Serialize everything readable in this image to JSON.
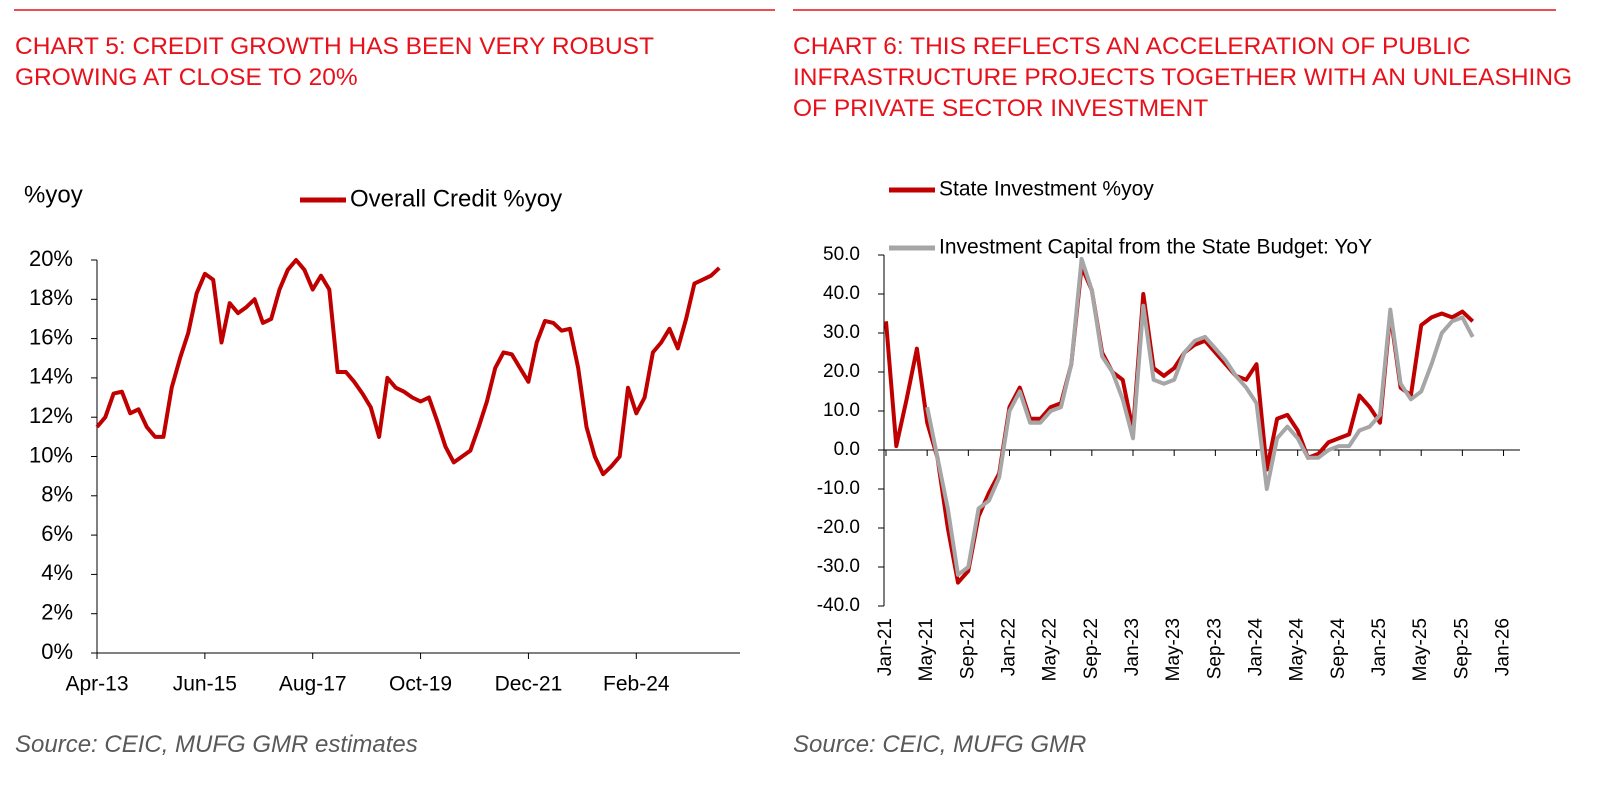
{
  "chart_data": [
    {
      "type": "line",
      "title": "CHART 5: CREDIT GROWTH HAS BEEN VERY ROBUST GROWING AT CLOSE TO 20%",
      "y_label": "%yoy",
      "source": "Source: CEIC, MUFG GMR estimates",
      "categories": [
        "Apr-13",
        null,
        null,
        null,
        null,
        null,
        null,
        null,
        null,
        null,
        null,
        null,
        null,
        "Jun-15",
        null,
        null,
        null,
        null,
        null,
        null,
        null,
        null,
        null,
        null,
        null,
        null,
        "Aug-17",
        null,
        null,
        null,
        null,
        null,
        null,
        null,
        null,
        null,
        null,
        null,
        null,
        "Oct-19",
        null,
        null,
        null,
        null,
        null,
        null,
        null,
        null,
        null,
        null,
        null,
        null,
        "Dec-21",
        null,
        null,
        null,
        null,
        null,
        null,
        null,
        null,
        null,
        null,
        null,
        null,
        "Feb-24",
        null,
        null,
        null,
        null,
        null,
        null,
        null,
        null,
        null,
        null
      ],
      "series": [
        {
          "name": "Overall Credit %yoy",
          "color": "#c00000",
          "values": [
            11.5,
            12.0,
            13.2,
            13.3,
            12.2,
            12.4,
            11.5,
            11.0,
            11.0,
            13.5,
            15.0,
            16.3,
            18.3,
            19.3,
            19.0,
            15.8,
            17.8,
            17.3,
            17.6,
            18.0,
            16.8,
            17.0,
            18.5,
            19.5,
            20.0,
            19.5,
            18.5,
            19.2,
            18.5,
            14.3,
            14.3,
            13.8,
            13.2,
            12.5,
            11.0,
            14.0,
            13.5,
            13.3,
            13.0,
            12.8,
            13.0,
            11.8,
            10.5,
            9.7,
            10.0,
            10.3,
            11.5,
            12.8,
            14.5,
            15.3,
            15.2,
            14.5,
            13.8,
            15.8,
            16.9,
            16.8,
            16.4,
            16.5,
            14.5,
            11.5,
            10.0,
            9.1,
            9.5,
            10.0,
            13.5,
            12.2,
            13.0,
            15.3,
            15.8,
            16.5,
            15.5,
            17.0,
            18.8,
            19.0,
            19.2,
            19.6
          ]
        }
      ],
      "ylim": [
        0,
        20
      ],
      "yticks": [
        {
          "value": 0,
          "label": "0%"
        },
        {
          "value": 2,
          "label": "2%"
        },
        {
          "value": 4,
          "label": "4%"
        },
        {
          "value": 6,
          "label": "6%"
        },
        {
          "value": 8,
          "label": "8%"
        },
        {
          "value": 10,
          "label": "10%"
        },
        {
          "value": 12,
          "label": "12%"
        },
        {
          "value": 14,
          "label": "14%"
        },
        {
          "value": 16,
          "label": "16%"
        },
        {
          "value": 18,
          "label": "18%"
        },
        {
          "value": 20,
          "label": "20%"
        }
      ],
      "grid": false
    },
    {
      "type": "line",
      "title": "CHART 6: THIS REFLECTS AN ACCELERATION OF PUBLIC INFRASTRUCTURE PROJECTS TOGETHER WITH AN UNLEASHING OF PRIVATE SECTOR INVESTMENT",
      "source": "Source: CEIC, MUFG GMR",
      "categories": [
        "Jan-21",
        null,
        null,
        null,
        "May-21",
        null,
        null,
        null,
        "Sep-21",
        null,
        null,
        null,
        "Jan-22",
        null,
        null,
        null,
        "May-22",
        null,
        null,
        null,
        "Sep-22",
        null,
        null,
        null,
        "Jan-23",
        null,
        null,
        null,
        "May-23",
        null,
        null,
        null,
        "Sep-23",
        null,
        null,
        null,
        "Jan-24",
        null,
        null,
        null,
        "May-24",
        null,
        null,
        null,
        "Sep-24",
        null,
        null,
        null,
        "Jan-25",
        null,
        null,
        null,
        "May-25",
        null,
        null,
        null,
        "Sep-25",
        null,
        null,
        null,
        "Jan-26"
      ],
      "series": [
        {
          "name": "State Investment %yoy",
          "color": "#c00000",
          "values": [
            33,
            1,
            13,
            26,
            7,
            -2,
            -20,
            -34,
            -31,
            -17,
            -11,
            -6,
            11,
            16,
            8,
            8,
            11,
            12,
            22,
            47,
            41,
            25,
            20,
            18,
            5,
            40,
            21,
            19,
            21,
            25,
            27,
            28,
            25,
            22,
            19,
            18,
            22,
            -5,
            8,
            9,
            5,
            -2,
            -1,
            2,
            3,
            4,
            14,
            11,
            7,
            35,
            16,
            14,
            32,
            34,
            35,
            34,
            35.5,
            33,
            null,
            null,
            null
          ]
        },
        {
          "name": "Investment Capital from the State Budget: YoY",
          "color": "#a6a6a6",
          "values": [
            null,
            null,
            null,
            null,
            11,
            -2,
            -15,
            -32,
            -30,
            -15,
            -13,
            -7,
            10,
            15,
            7,
            7,
            10,
            11,
            22,
            49,
            41,
            24,
            20,
            13,
            3,
            37,
            18,
            17,
            18,
            25,
            28,
            29,
            26,
            23,
            19,
            16,
            12,
            -10,
            3,
            6,
            3,
            -2,
            -2,
            0,
            1,
            1,
            5,
            6,
            9,
            36,
            17,
            13,
            15,
            22,
            30,
            33,
            34,
            29,
            null,
            null,
            null
          ]
        }
      ],
      "ylim": [
        -40,
        50
      ],
      "yticks": [
        {
          "value": -40,
          "label": "-40.0"
        },
        {
          "value": -30,
          "label": "-30.0"
        },
        {
          "value": -20,
          "label": "-20.0"
        },
        {
          "value": -10,
          "label": "-10.0"
        },
        {
          "value": 0,
          "label": "0.0"
        },
        {
          "value": 10,
          "label": "10.0"
        },
        {
          "value": 20,
          "label": "20.0"
        },
        {
          "value": 30,
          "label": "30.0"
        },
        {
          "value": 40,
          "label": "40.0"
        },
        {
          "value": 50,
          "label": "50.0"
        }
      ],
      "grid": false
    }
  ]
}
